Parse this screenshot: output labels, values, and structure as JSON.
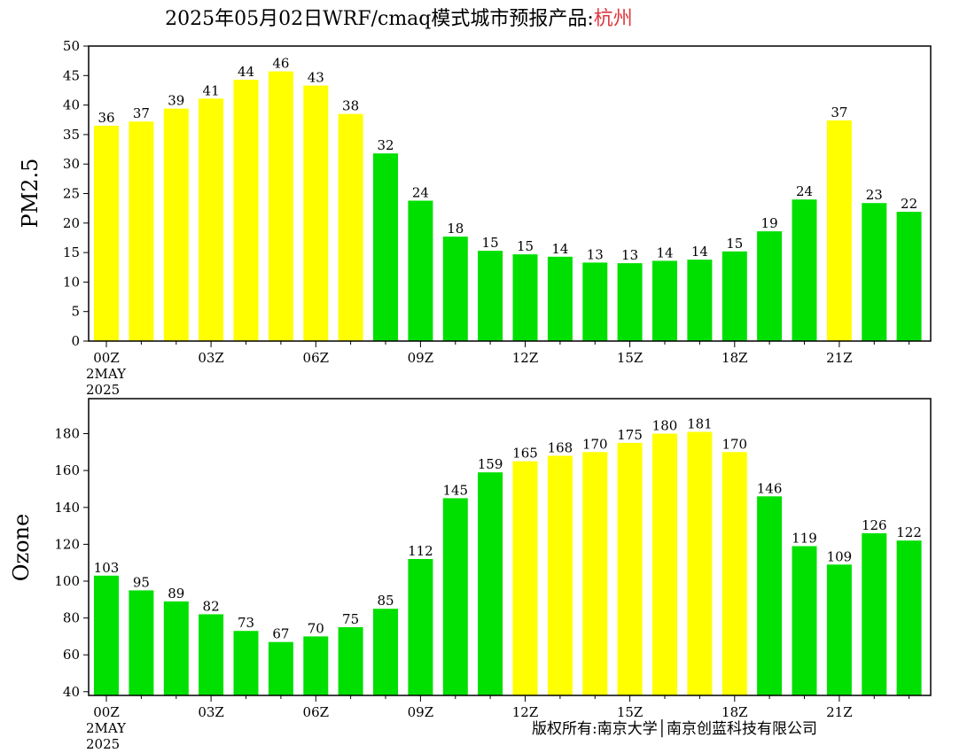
{
  "header": {
    "title_prefix": "2025年05月02日WRF/cmaq模式城市预报产品:",
    "city": "杭州",
    "city_color": "#e0353b"
  },
  "footer": {
    "copyright": "版权所有:南京大学│南京创蓝科技有限公司"
  },
  "colors": {
    "good": "#00e000",
    "moderate": "#ffff00"
  },
  "chart_data": [
    {
      "type": "bar",
      "ylabel": "PM2.5",
      "ylim": [
        0,
        50
      ],
      "yticks": [
        0,
        5,
        10,
        15,
        20,
        25,
        30,
        35,
        40,
        45,
        50
      ],
      "x": [
        0,
        1,
        2,
        3,
        4,
        5,
        6,
        7,
        8,
        9,
        10,
        11,
        12,
        13,
        14,
        15,
        16,
        17,
        18,
        19,
        20,
        21,
        22,
        23
      ],
      "xtick_labels": [
        {
          "x": 0,
          "lines": [
            "00Z",
            "2MAY",
            "2025"
          ]
        },
        {
          "x": 3,
          "lines": [
            "03Z"
          ]
        },
        {
          "x": 6,
          "lines": [
            "06Z"
          ]
        },
        {
          "x": 9,
          "lines": [
            "09Z"
          ]
        },
        {
          "x": 12,
          "lines": [
            "12Z"
          ]
        },
        {
          "x": 15,
          "lines": [
            "15Z"
          ]
        },
        {
          "x": 18,
          "lines": [
            "18Z"
          ]
        },
        {
          "x": 21,
          "lines": [
            "21Z"
          ]
        }
      ],
      "values": [
        36.5,
        37.2,
        39.4,
        41.1,
        44.3,
        45.7,
        43.3,
        38.5,
        31.8,
        23.8,
        17.7,
        15.3,
        14.7,
        14.3,
        13.3,
        13.2,
        13.6,
        13.8,
        15.2,
        18.6,
        24.0,
        37.4,
        23.4,
        21.9
      ],
      "labels": [
        "36",
        "37",
        "39",
        "41",
        "44",
        "46",
        "43",
        "38",
        "32",
        "24",
        "18",
        "15",
        "15",
        "14",
        "13",
        "13",
        "14",
        "14",
        "15",
        "19",
        "24",
        "37",
        "23",
        "22"
      ],
      "bar_colors": [
        "moderate",
        "moderate",
        "moderate",
        "moderate",
        "moderate",
        "moderate",
        "moderate",
        "moderate",
        "good",
        "good",
        "good",
        "good",
        "good",
        "good",
        "good",
        "good",
        "good",
        "good",
        "good",
        "good",
        "good",
        "moderate",
        "good",
        "good"
      ]
    },
    {
      "type": "bar",
      "ylabel": "Ozone",
      "ylim": [
        38,
        199
      ],
      "yticks": [
        40,
        60,
        80,
        100,
        120,
        140,
        160,
        180
      ],
      "x": [
        0,
        1,
        2,
        3,
        4,
        5,
        6,
        7,
        8,
        9,
        10,
        11,
        12,
        13,
        14,
        15,
        16,
        17,
        18,
        19,
        20,
        21,
        22,
        23
      ],
      "xtick_labels": [
        {
          "x": 0,
          "lines": [
            "00Z",
            "2MAY",
            "2025"
          ]
        },
        {
          "x": 3,
          "lines": [
            "03Z"
          ]
        },
        {
          "x": 6,
          "lines": [
            "06Z"
          ]
        },
        {
          "x": 9,
          "lines": [
            "09Z"
          ]
        },
        {
          "x": 12,
          "lines": [
            "12Z"
          ]
        },
        {
          "x": 15,
          "lines": [
            "15Z"
          ]
        },
        {
          "x": 18,
          "lines": [
            "18Z"
          ]
        },
        {
          "x": 21,
          "lines": [
            "21Z"
          ]
        }
      ],
      "values": [
        103,
        95,
        89,
        82,
        73,
        67,
        70,
        75,
        85,
        112,
        145,
        159,
        165,
        168,
        170,
        175,
        180,
        181,
        170,
        146,
        119,
        109,
        126,
        122
      ],
      "labels": [
        "103",
        "95",
        "89",
        "82",
        "73",
        "67",
        "70",
        "75",
        "85",
        "112",
        "145",
        "159",
        "165",
        "168",
        "170",
        "175",
        "180",
        "181",
        "170",
        "146",
        "119",
        "109",
        "126",
        "122"
      ],
      "bar_colors": [
        "good",
        "good",
        "good",
        "good",
        "good",
        "good",
        "good",
        "good",
        "good",
        "good",
        "good",
        "good",
        "moderate",
        "moderate",
        "moderate",
        "moderate",
        "moderate",
        "moderate",
        "moderate",
        "good",
        "good",
        "good",
        "good",
        "good"
      ]
    }
  ]
}
